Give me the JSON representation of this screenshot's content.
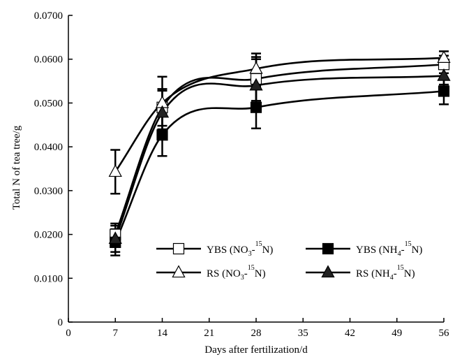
{
  "chart_data": {
    "type": "line",
    "xlabel": "Days after fertilization/d",
    "ylabel": "Total N of tea tree/g",
    "xlim": [
      0,
      56
    ],
    "ylim": [
      0,
      0.07
    ],
    "x_ticks": [
      "0",
      "7",
      "14",
      "21",
      "28",
      "35",
      "42",
      "49",
      "56"
    ],
    "y_ticks": [
      "0",
      "0.0100",
      "0.0200",
      "0.0300",
      "0.0400",
      "0.0500",
      "0.0600",
      "0.0700"
    ],
    "x": [
      7,
      14,
      28,
      56
    ],
    "grid": false,
    "legend_position": "lower-right",
    "series": [
      {
        "name_parts": [
          "YBS (NO",
          "3",
          "-",
          "15",
          "N)"
        ],
        "marker": "square-open",
        "values": [
          0.02,
          0.049,
          0.0555,
          0.0588
        ],
        "errors": [
          0.0025,
          0.0042,
          0.005,
          0.002
        ]
      },
      {
        "name_parts": [
          "YBS (NH",
          "4",
          "-",
          "15",
          "N)"
        ],
        "marker": "square-filled",
        "values": [
          0.0182,
          0.0427,
          0.049,
          0.0527
        ],
        "errors": [
          0.003,
          0.0048,
          0.0048,
          0.003
        ]
      },
      {
        "name_parts": [
          "RS (NO",
          "3",
          "-",
          "15",
          "N)"
        ],
        "marker": "triangle-open",
        "values": [
          0.0343,
          0.05,
          0.0578,
          0.0603
        ],
        "errors": [
          0.005,
          0.006,
          0.0035,
          0.0015
        ]
      },
      {
        "name_parts": [
          "RS (NH",
          "4",
          "-",
          "15",
          "N)"
        ],
        "marker": "triangle-filled",
        "values": [
          0.019,
          0.0478,
          0.054,
          0.0562
        ],
        "errors": [
          0.003,
          0.005,
          0.006,
          0.002
        ]
      }
    ]
  }
}
